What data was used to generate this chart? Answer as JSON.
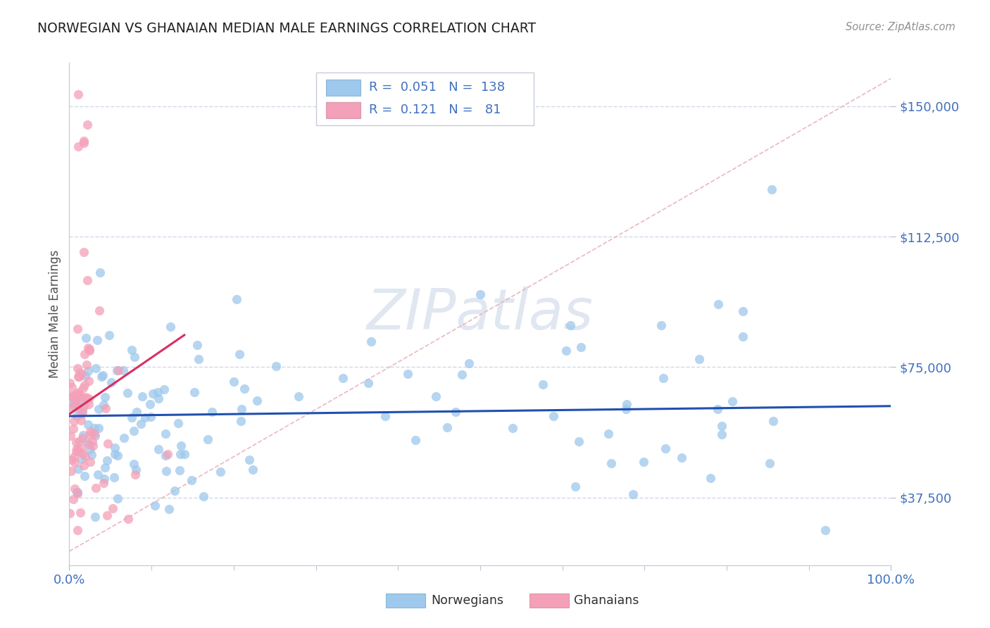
{
  "title": "NORWEGIAN VS GHANAIAN MEDIAN MALE EARNINGS CORRELATION CHART",
  "source_text": "Source: ZipAtlas.com",
  "ylabel": "Median Male Earnings",
  "x_min": 0.0,
  "x_max": 1.0,
  "y_min": 18000,
  "y_max": 162500,
  "y_ticks": [
    37500,
    75000,
    112500,
    150000
  ],
  "y_tick_labels": [
    "$37,500",
    "$75,000",
    "$112,500",
    "$150,000"
  ],
  "x_tick_labels": [
    "0.0%",
    "100.0%"
  ],
  "norwegian_color": "#9ec8ec",
  "ghanaian_color": "#f4a0b8",
  "norwegian_line_color": "#2050b0",
  "ghanaian_line_color": "#d83060",
  "diag_line_color": "#e8b0bc",
  "watermark_color": "#ccd8e8",
  "background_color": "#ffffff",
  "grid_color": "#d0d8e8",
  "title_color": "#202020",
  "tick_color": "#4070c0",
  "legend_R_norwegian": "0.051",
  "legend_N_norwegian": "138",
  "legend_R_ghanaian": "0.121",
  "legend_N_ghanaian": "81"
}
